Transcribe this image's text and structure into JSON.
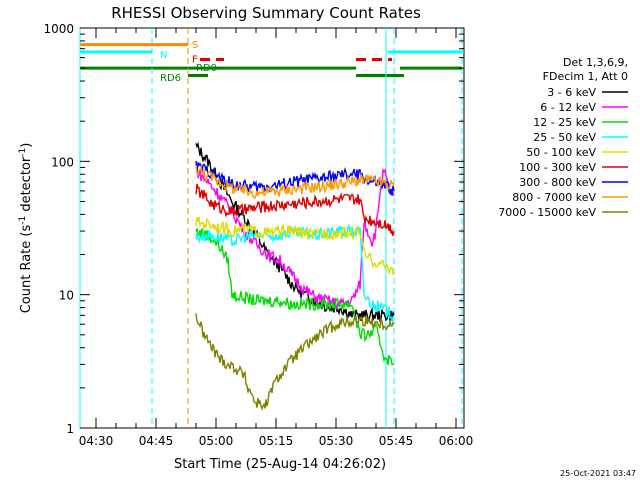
{
  "chart_data": {
    "type": "line",
    "title": "RHESSI Observing Summary Count Rates",
    "xlabel": "Start Time (25-Aug-14 04:26:02)",
    "ylabel": "Count Rate (s",
    "ylabel_sup1": "-1",
    "ylabel_mid": " detector",
    "ylabel_sup2": "-1",
    "ylabel_end": ")",
    "footer": "25-Oct-2021 03:47",
    "yscale": "log",
    "ylim": [
      1,
      1000
    ],
    "xlim_minutes": [
      0,
      96
    ],
    "x_ticks": [
      {
        "m": 4,
        "label": "04:30"
      },
      {
        "m": 19,
        "label": "04:45"
      },
      {
        "m": 34,
        "label": "05:00"
      },
      {
        "m": 49,
        "label": "05:15"
      },
      {
        "m": 64,
        "label": "05:30"
      },
      {
        "m": 79,
        "label": "05:45"
      },
      {
        "m": 94,
        "label": "06:00"
      }
    ],
    "y_ticks": [
      {
        "v": 1,
        "label": "1"
      },
      {
        "v": 10,
        "label": "10"
      },
      {
        "v": 100,
        "label": "100"
      },
      {
        "v": 1000,
        "label": "1000"
      }
    ],
    "legend": {
      "header1": "Det 1,3,6,9,",
      "header2": "FDecim 1, Att 0",
      "entries": [
        {
          "label": "3 - 6 keV",
          "color": "#000000"
        },
        {
          "label": "6 - 12 keV",
          "color": "#ff00ff"
        },
        {
          "label": "12 - 25 keV",
          "color": "#00dd00"
        },
        {
          "label": "25 - 50 keV",
          "color": "#00ffff"
        },
        {
          "label": "50 - 100 keV",
          "color": "#dddd00"
        },
        {
          "label": "100 - 300 keV",
          "color": "#dd0000"
        },
        {
          "label": "300 - 800 keV",
          "color": "#0000ff"
        },
        {
          "label": "800 - 7000 keV",
          "color": "#ff9900"
        },
        {
          "label": "7000 - 15000 keV",
          "color": "#808000"
        }
      ]
    },
    "series": [
      {
        "name": "3 - 6 keV",
        "color": "#000000",
        "points": [
          [
            29,
            130
          ],
          [
            32,
            100
          ],
          [
            35,
            70
          ],
          [
            38,
            50
          ],
          [
            41,
            38
          ],
          [
            44,
            28
          ],
          [
            47,
            20
          ],
          [
            50,
            16
          ],
          [
            53,
            12
          ],
          [
            56,
            10
          ],
          [
            59,
            9
          ],
          [
            62,
            8
          ],
          [
            65,
            8
          ],
          [
            68,
            7
          ],
          [
            71,
            7
          ],
          [
            74,
            7
          ],
          [
            77,
            7
          ],
          [
            78.5,
            7
          ]
        ]
      },
      {
        "name": "6 - 12 keV",
        "color": "#ff00ff",
        "points": [
          [
            29,
            85
          ],
          [
            32,
            70
          ],
          [
            35,
            55
          ],
          [
            38,
            42
          ],
          [
            41,
            30
          ],
          [
            44,
            24
          ],
          [
            47,
            20
          ],
          [
            50,
            18
          ],
          [
            53,
            14
          ],
          [
            56,
            11
          ],
          [
            59,
            9.5
          ],
          [
            62,
            9
          ],
          [
            65,
            8.5
          ],
          [
            68,
            9
          ],
          [
            70,
            12
          ],
          [
            71,
            35
          ],
          [
            72,
            30
          ],
          [
            73,
            25
          ],
          [
            74,
            30
          ],
          [
            75,
            60
          ],
          [
            76,
            85
          ],
          [
            77,
            65
          ],
          [
            78.5,
            55
          ]
        ]
      },
      {
        "name": "12 - 25 keV",
        "color": "#00dd00",
        "points": [
          [
            29,
            30
          ],
          [
            32,
            28
          ],
          [
            35,
            23
          ],
          [
            37,
            18
          ],
          [
            38,
            10
          ],
          [
            41,
            9.5
          ],
          [
            44,
            9
          ],
          [
            47,
            9
          ],
          [
            50,
            9
          ],
          [
            53,
            8.5
          ],
          [
            56,
            8.5
          ],
          [
            59,
            8.5
          ],
          [
            62,
            8.5
          ],
          [
            65,
            8.5
          ],
          [
            68,
            8.5
          ],
          [
            70,
            5
          ],
          [
            72,
            5
          ],
          [
            74,
            5.5
          ],
          [
            76,
            3.5
          ],
          [
            78.5,
            3
          ]
        ]
      },
      {
        "name": "25 - 50 keV",
        "color": "#00ffff",
        "points": [
          [
            29,
            27
          ],
          [
            32,
            28
          ],
          [
            35,
            27
          ],
          [
            38,
            25
          ],
          [
            41,
            27
          ],
          [
            44,
            28
          ],
          [
            47,
            27
          ],
          [
            50,
            28
          ],
          [
            53,
            29
          ],
          [
            56,
            29
          ],
          [
            59,
            28
          ],
          [
            62,
            29
          ],
          [
            65,
            30
          ],
          [
            68,
            30
          ],
          [
            70,
            30
          ],
          [
            71,
            10
          ],
          [
            73,
            8.5
          ],
          [
            75,
            8
          ],
          [
            77,
            7.5
          ],
          [
            78.5,
            7
          ]
        ]
      },
      {
        "name": "50 - 100 keV",
        "color": "#dddd00",
        "points": [
          [
            29,
            35
          ],
          [
            32,
            34
          ],
          [
            35,
            32
          ],
          [
            38,
            30
          ],
          [
            41,
            31
          ],
          [
            44,
            30
          ],
          [
            47,
            29
          ],
          [
            50,
            30
          ],
          [
            53,
            30
          ],
          [
            56,
            29
          ],
          [
            59,
            28
          ],
          [
            62,
            29
          ],
          [
            65,
            29
          ],
          [
            68,
            29
          ],
          [
            70,
            30
          ],
          [
            71,
            20
          ],
          [
            73,
            18
          ],
          [
            75,
            17
          ],
          [
            77,
            16
          ],
          [
            78.5,
            15
          ]
        ]
      },
      {
        "name": "100 - 300 keV",
        "color": "#dd0000",
        "points": [
          [
            29,
            62
          ],
          [
            31,
            55
          ],
          [
            33,
            48
          ],
          [
            35,
            45
          ],
          [
            38,
            42
          ],
          [
            41,
            43
          ],
          [
            44,
            45
          ],
          [
            47,
            46
          ],
          [
            50,
            47
          ],
          [
            53,
            48
          ],
          [
            56,
            49
          ],
          [
            59,
            50
          ],
          [
            62,
            51
          ],
          [
            65,
            52
          ],
          [
            68,
            52
          ],
          [
            70,
            51
          ],
          [
            71,
            38
          ],
          [
            73,
            36
          ],
          [
            75,
            35
          ],
          [
            77,
            33
          ],
          [
            78.5,
            30
          ]
        ]
      },
      {
        "name": "300 - 800 keV",
        "color": "#0000ff",
        "points": [
          [
            29,
            92
          ],
          [
            32,
            85
          ],
          [
            35,
            75
          ],
          [
            38,
            68
          ],
          [
            41,
            65
          ],
          [
            44,
            64
          ],
          [
            47,
            65
          ],
          [
            50,
            67
          ],
          [
            53,
            70
          ],
          [
            56,
            72
          ],
          [
            59,
            74
          ],
          [
            62,
            76
          ],
          [
            65,
            78
          ],
          [
            68,
            80
          ],
          [
            70,
            79
          ],
          [
            71,
            75
          ],
          [
            73,
            70
          ],
          [
            75,
            67
          ],
          [
            77,
            64
          ],
          [
            78.5,
            60
          ]
        ]
      },
      {
        "name": "800 - 7000 keV",
        "color": "#ff9900",
        "points": [
          [
            29,
            88
          ],
          [
            32,
            78
          ],
          [
            35,
            70
          ],
          [
            38,
            63
          ],
          [
            41,
            60
          ],
          [
            44,
            58
          ],
          [
            47,
            59
          ],
          [
            50,
            60
          ],
          [
            53,
            62
          ],
          [
            56,
            63
          ],
          [
            59,
            64
          ],
          [
            62,
            66
          ],
          [
            65,
            68
          ],
          [
            68,
            70
          ],
          [
            70,
            72
          ],
          [
            72,
            72
          ],
          [
            74,
            70
          ],
          [
            76,
            68
          ],
          [
            78.5,
            65
          ]
        ]
      },
      {
        "name": "7000 - 15000 keV",
        "color": "#808000",
        "points": [
          [
            29,
            7
          ],
          [
            31,
            5
          ],
          [
            33,
            4
          ],
          [
            35,
            3.3
          ],
          [
            37,
            3
          ],
          [
            39,
            2.8
          ],
          [
            41,
            2.5
          ],
          [
            42,
            2
          ],
          [
            43,
            1.8
          ],
          [
            44,
            1.5
          ],
          [
            45,
            1.6
          ],
          [
            46,
            1.4
          ],
          [
            47,
            1.6
          ],
          [
            48,
            2
          ],
          [
            50,
            2.5
          ],
          [
            52,
            3
          ],
          [
            54,
            3.5
          ],
          [
            56,
            4
          ],
          [
            58,
            4.5
          ],
          [
            60,
            5
          ],
          [
            62,
            5.5
          ],
          [
            64,
            6
          ],
          [
            66,
            6.2
          ],
          [
            68,
            6.3
          ],
          [
            70,
            6.5
          ],
          [
            72,
            6.3
          ],
          [
            74,
            6.2
          ],
          [
            76,
            6
          ],
          [
            78.5,
            6
          ]
        ]
      }
    ],
    "vlines": [
      {
        "m": 0,
        "color": "#00ffff",
        "style": "solid"
      },
      {
        "m": 18,
        "color": "#00ffff",
        "style": "dashed"
      },
      {
        "m": 27,
        "color": "#ff8800",
        "style": "dashed"
      },
      {
        "m": 76.5,
        "color": "#00ffff",
        "style": "solid"
      },
      {
        "m": 78.5,
        "color": "#00ffff",
        "style": "dashed"
      },
      {
        "m": 95.5,
        "color": "#00ffff",
        "style": "dashed"
      }
    ],
    "flag_bars": [
      {
        "x0": 0,
        "x1": 27,
        "v": 750,
        "color": "#ff8800",
        "dash": false
      },
      {
        "x0": 0,
        "x1": 18,
        "v": 660,
        "color": "#00ffff",
        "dash": false
      },
      {
        "x0": 77,
        "x1": 95.5,
        "v": 660,
        "color": "#00ffff",
        "dash": false
      },
      {
        "x0": 30,
        "x1": 36,
        "v": 580,
        "color": "#dd0000",
        "dash": true
      },
      {
        "x0": 69,
        "x1": 78,
        "v": 580,
        "color": "#dd0000",
        "dash": true
      },
      {
        "x0": 0,
        "x1": 69,
        "v": 500,
        "color": "#008000",
        "dash": false
      },
      {
        "x0": 80,
        "x1": 95.5,
        "v": 500,
        "color": "#008000",
        "dash": false
      },
      {
        "x0": 27,
        "x1": 32,
        "v": 440,
        "color": "#008000",
        "dash": false
      },
      {
        "x0": 69,
        "x1": 81,
        "v": 440,
        "color": "#008000",
        "dash": false
      }
    ],
    "flag_labels": [
      {
        "text": "S",
        "m": 28,
        "v": 760,
        "color": "#ff8800"
      },
      {
        "text": "N",
        "m": 20,
        "v": 640,
        "color": "#00ffff"
      },
      {
        "text": "F",
        "m": 28,
        "v": 590,
        "color": "#dd0000"
      },
      {
        "text": "RD0",
        "m": 29,
        "v": 510,
        "color": "#008000"
      },
      {
        "text": "RD6",
        "m": 20,
        "v": 430,
        "color": "#008000"
      }
    ]
  }
}
